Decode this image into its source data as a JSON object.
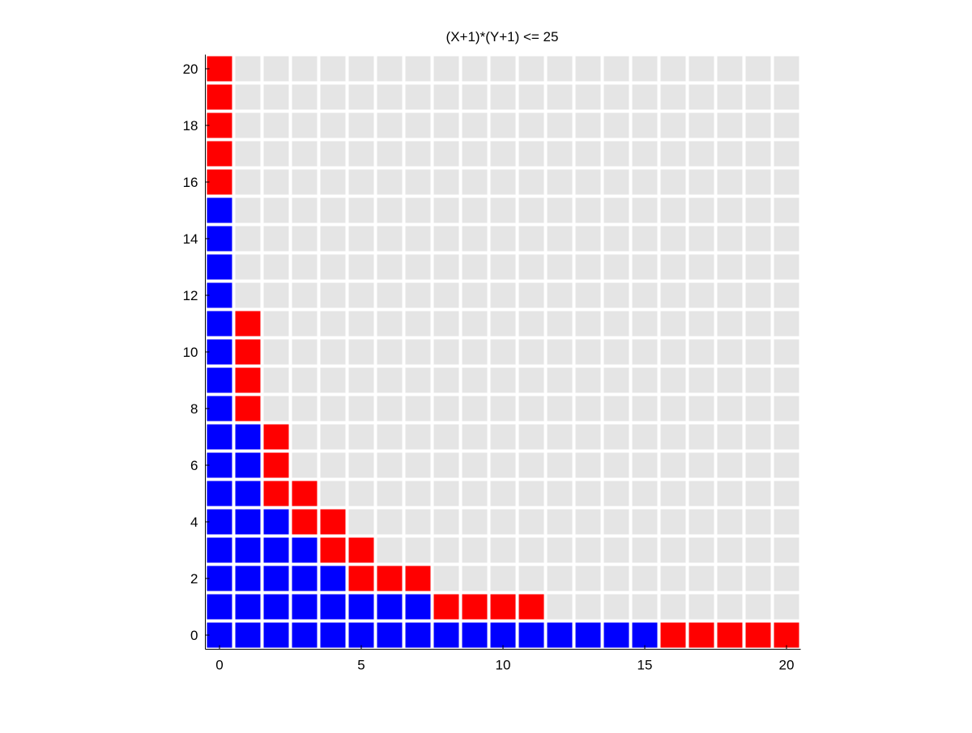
{
  "chart_data": {
    "type": "heatmap",
    "title": "(X+1)*(Y+1) <= 25",
    "xlabel": "",
    "ylabel": "",
    "xlim": [
      0,
      20
    ],
    "ylim": [
      0,
      20
    ],
    "x_ticks": [
      0,
      5,
      10,
      15,
      20
    ],
    "x_tick_labels": [
      "0",
      "5",
      "10",
      "15",
      "20"
    ],
    "y_ticks": [
      0,
      2,
      4,
      6,
      8,
      10,
      12,
      14,
      16,
      18,
      20
    ],
    "y_tick_labels": [
      "0",
      "2",
      "4",
      "6",
      "8",
      "10",
      "12",
      "14",
      "16",
      "18",
      "20"
    ],
    "grid": false,
    "colors": {
      "blue": "#0000ff",
      "red": "#ff0000",
      "background": "#e5e5e5"
    },
    "blue_cells_max_x_by_row": [
      15,
      7,
      4,
      3,
      2,
      1,
      1,
      1,
      0,
      0,
      0,
      0,
      0,
      0,
      0,
      0,
      -1,
      -1,
      -1,
      -1,
      -1
    ],
    "red_cells_by_row": [
      [
        16,
        20
      ],
      [
        8,
        11
      ],
      [
        5,
        7
      ],
      [
        4,
        5
      ],
      [
        3,
        4
      ],
      [
        2,
        3
      ],
      [
        2,
        2
      ],
      [
        2,
        2
      ],
      [
        1,
        1
      ],
      [
        1,
        1
      ],
      [
        1,
        1
      ],
      [
        1,
        1
      ],
      null,
      null,
      null,
      null,
      [
        0,
        0
      ],
      [
        0,
        0
      ],
      [
        0,
        0
      ],
      [
        0,
        0
      ],
      [
        0,
        0
      ]
    ]
  }
}
